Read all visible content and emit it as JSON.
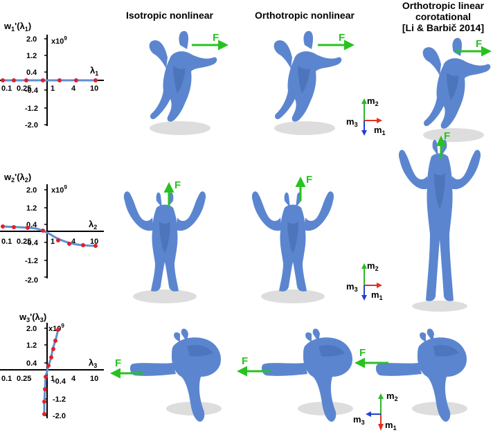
{
  "columns": {
    "col1": "Isotropic nonlinear",
    "col2": "Orthotropic nonlinear",
    "col3_line1": "Orthotropic linear",
    "col3_line2": "corotational",
    "col3_line3": "[Li & Barbič 2014]"
  },
  "plots": [
    {
      "ylabel_main": "w",
      "ylabel_sub": "1",
      "ylabel_tail": "'(λ",
      "ylabel_tail_sub": "1",
      "ylabel_close": ")",
      "scale": "x10",
      "scale_exp": "9",
      "xlabel_main": "λ",
      "xlabel_sub": "1",
      "yticks": [
        "2.0",
        "1.2",
        "0.4",
        "-0.4",
        "-1.2",
        "-2.0"
      ],
      "xticks": [
        "0.1",
        "0.25",
        "1",
        "4",
        "10"
      ]
    },
    {
      "ylabel_main": "w",
      "ylabel_sub": "2",
      "ylabel_tail": "'(λ",
      "ylabel_tail_sub": "2",
      "ylabel_close": ")",
      "scale": "x10",
      "scale_exp": "9",
      "xlabel_main": "λ",
      "xlabel_sub": "2",
      "yticks": [
        "2.0",
        "1.2",
        "0.4",
        "-0.4",
        "-1.2",
        "-2.0"
      ],
      "xticks": [
        "0.1",
        "0.25",
        "1",
        "4",
        "10"
      ]
    },
    {
      "ylabel_main": "w",
      "ylabel_sub": "3",
      "ylabel_tail": "'(λ",
      "ylabel_tail_sub": "3",
      "ylabel_close": ")",
      "scale": "x10",
      "scale_exp": "9",
      "xlabel_main": "λ",
      "xlabel_sub": "3",
      "yticks": [
        "2.0",
        "1.2",
        "0.4",
        "-0.4",
        "-1.2",
        "-2.0"
      ],
      "xticks": [
        "0.1",
        "0.25",
        "1",
        "4",
        "10"
      ]
    }
  ],
  "force_label": "F",
  "axes_labels": {
    "m1": "m",
    "m1_sub": "1",
    "m2": "m",
    "m2_sub": "2",
    "m3": "m",
    "m3_sub": "3"
  },
  "colors": {
    "mesh": "#5b86cf",
    "mesh_dark": "#3f63a8",
    "shadow": "#c9c9c9",
    "force_arrow": "#27c21f",
    "axis_red": "#e03020",
    "axis_green": "#2ab82a",
    "axis_blue": "#1f3fd0",
    "curve": "#5f8fd0",
    "point": "#e0202a"
  },
  "icons": {
    "force_arrow": "arrow-right-icon",
    "frame": "coordinate-frame-icon",
    "mesh": "armadillo-mesh"
  }
}
